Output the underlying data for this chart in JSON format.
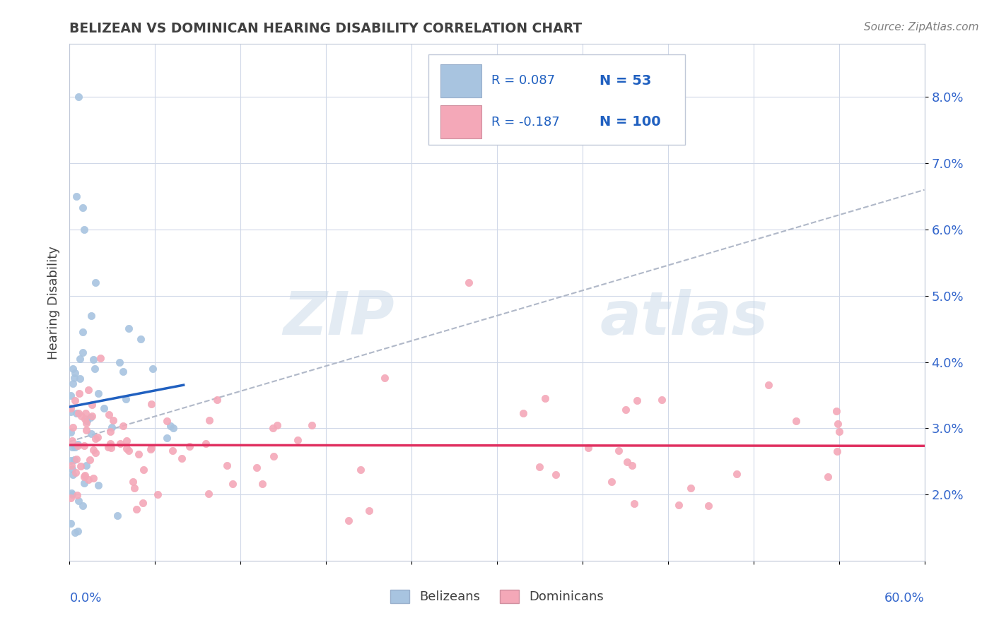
{
  "title": "BELIZEAN VS DOMINICAN HEARING DISABILITY CORRELATION CHART",
  "source": "Source: ZipAtlas.com",
  "ylabel": "Hearing Disability",
  "xlim": [
    0.0,
    0.6
  ],
  "ylim": [
    0.01,
    0.088
  ],
  "yticks": [
    0.02,
    0.03,
    0.04,
    0.05,
    0.06,
    0.07,
    0.08
  ],
  "ytick_labels": [
    "2.0%",
    "3.0%",
    "4.0%",
    "5.0%",
    "6.0%",
    "7.0%",
    "8.0%"
  ],
  "legend_r1": "0.087",
  "legend_n1": "53",
  "legend_r2": "-0.187",
  "legend_n2": "100",
  "belizean_color": "#a8c4e0",
  "dominican_color": "#f4a8b8",
  "trend_belizean_color": "#2060c0",
  "trend_dominican_color": "#e03060",
  "trend_gray_color": "#b0b8c8",
  "background_color": "#ffffff",
  "title_color": "#404040",
  "legend_text_color": "#2060c0",
  "watermark_zip": "ZIP",
  "watermark_atlas": "atlas"
}
